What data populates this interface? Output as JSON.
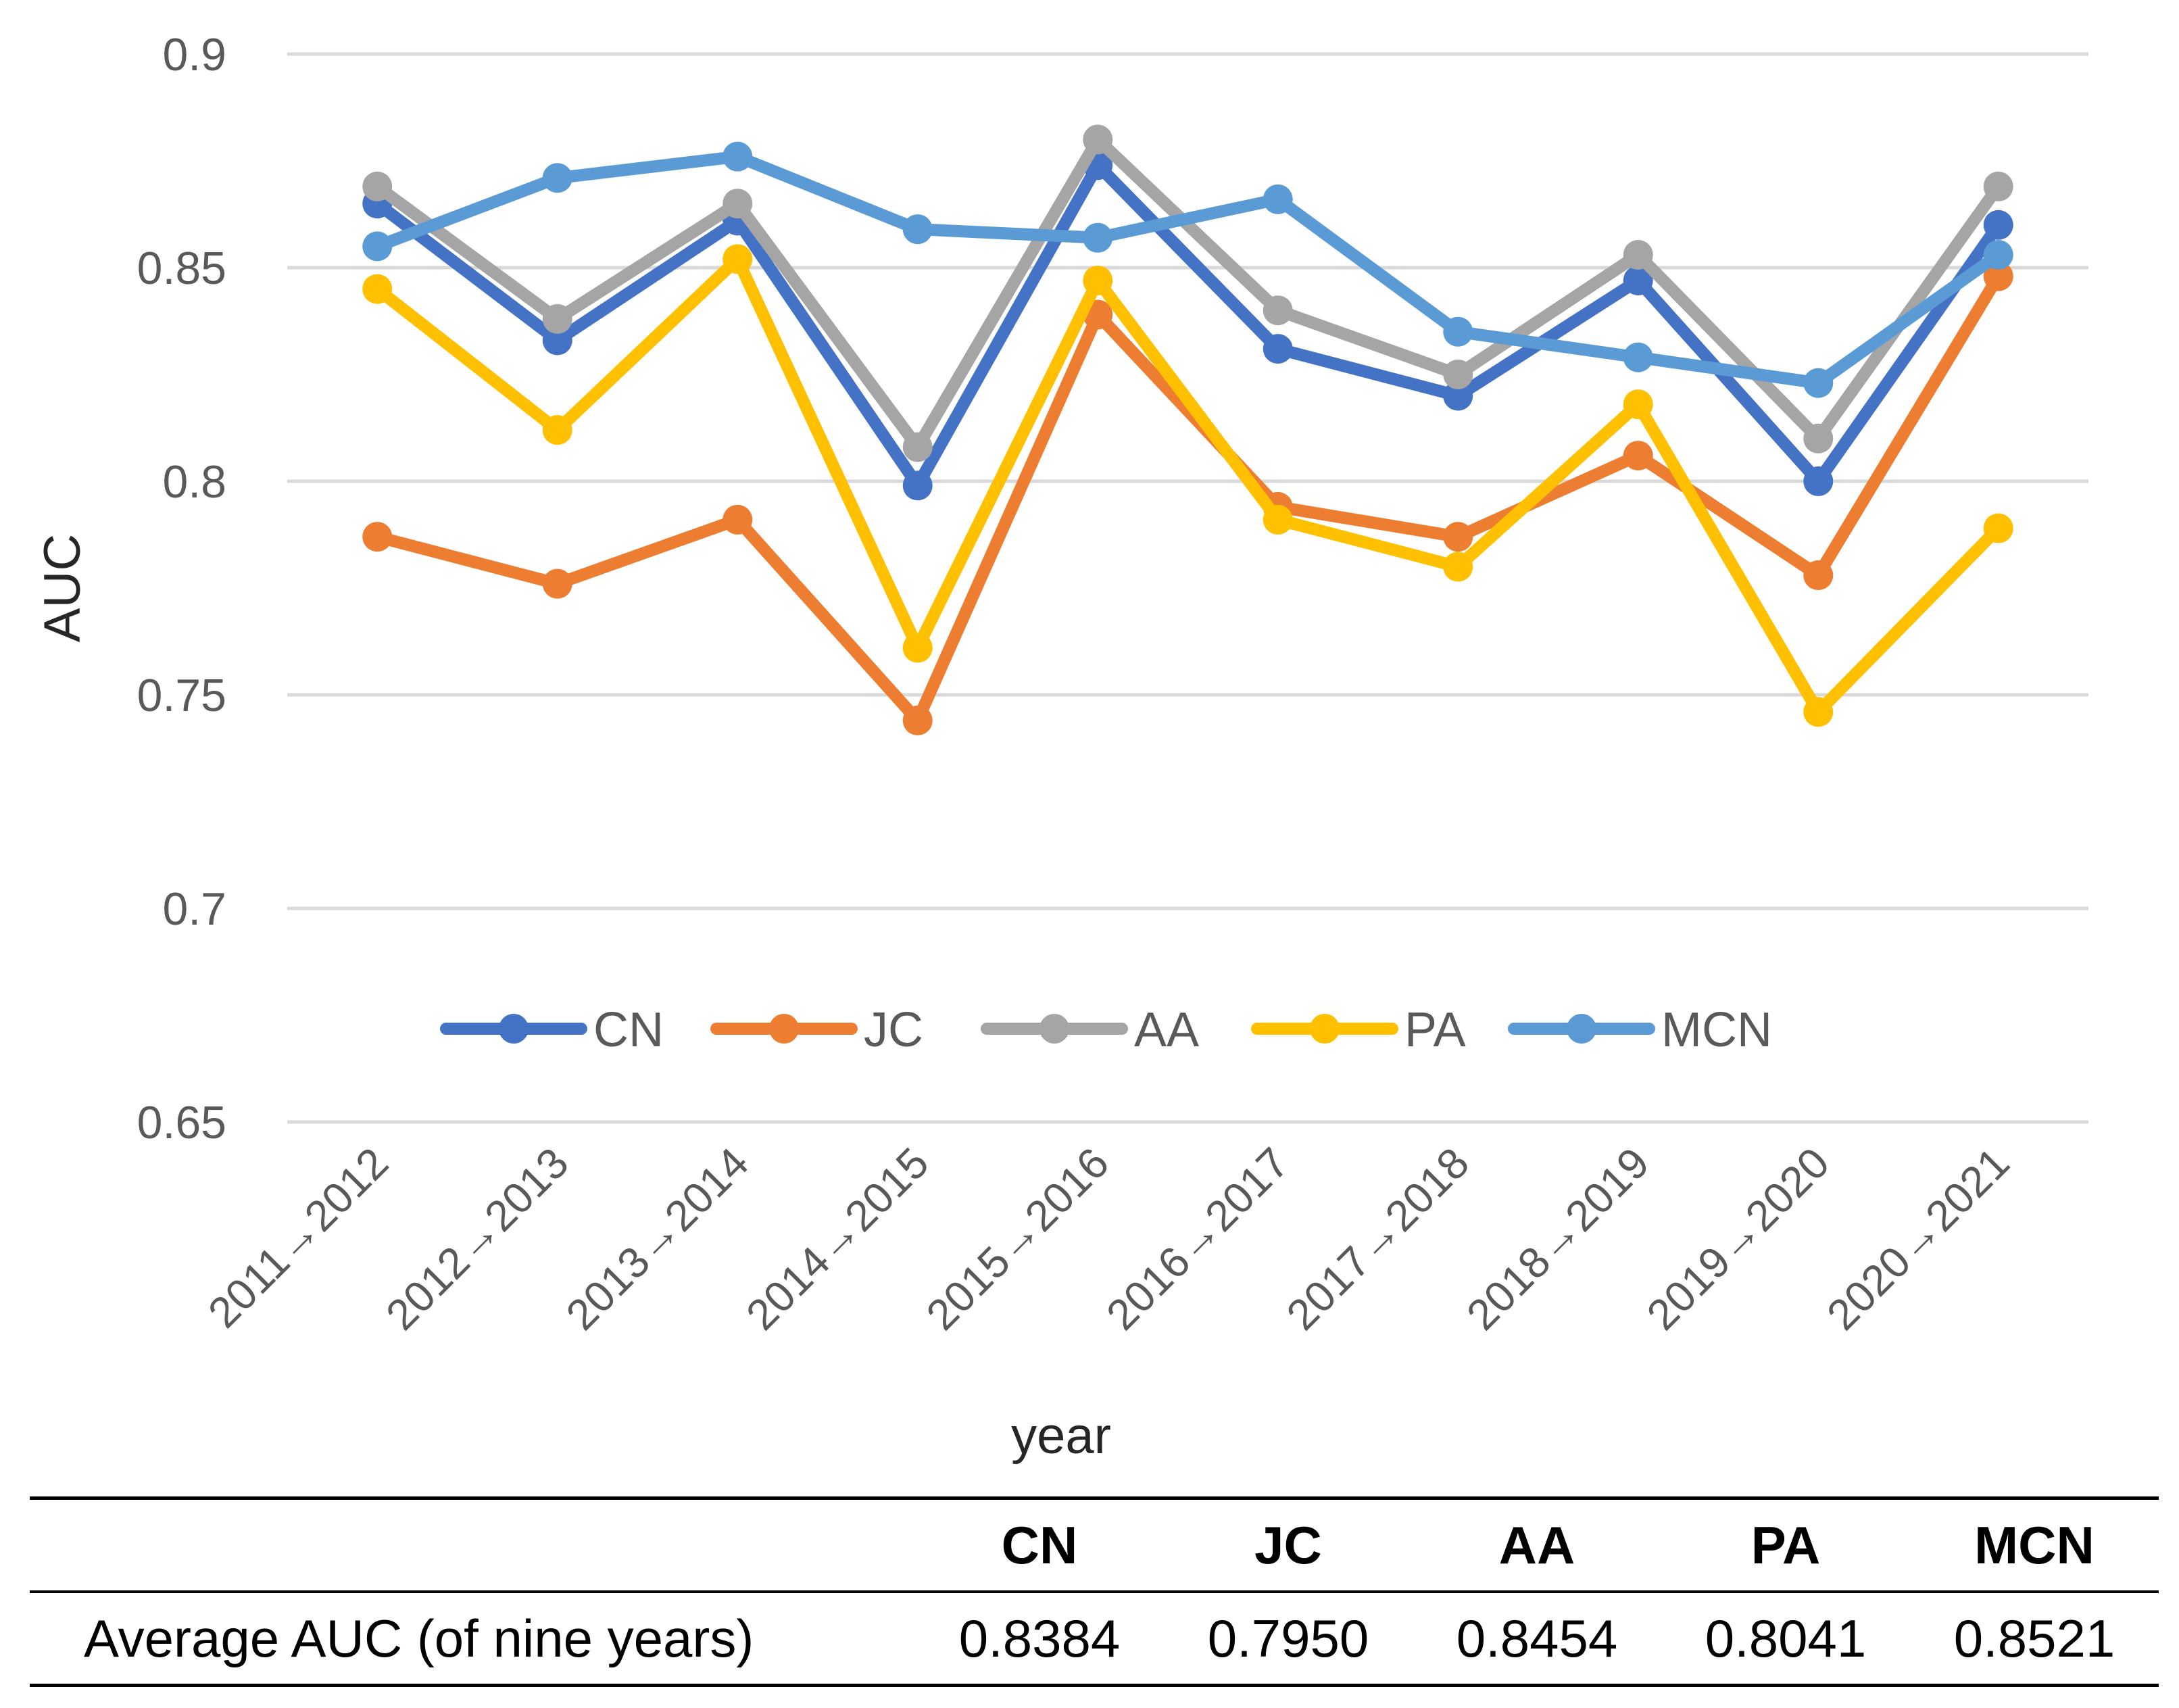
{
  "chart_data": {
    "type": "line",
    "title": "",
    "xlabel": "year",
    "ylabel": "AUC",
    "ylim": [
      0.65,
      0.9
    ],
    "yticks": [
      0.65,
      0.7,
      0.75,
      0.8,
      0.85,
      0.9
    ],
    "ytick_labels": [
      "0.65",
      "0.7",
      "0.75",
      "0.8",
      "0.85",
      "0.9"
    ],
    "grid": true,
    "legend_position": "bottom-inside",
    "categories": [
      "2011→2012",
      "2012→2013",
      "2013→2014",
      "2014→2015",
      "2015→2016",
      "2016→2017",
      "2017→2018",
      "2018→2019",
      "2019→2020",
      "2020→2021"
    ],
    "series": [
      {
        "name": "CN",
        "color": "#4472C4",
        "values": [
          0.865,
          0.833,
          0.861,
          0.799,
          0.874,
          0.831,
          0.82,
          0.847,
          0.8,
          0.86
        ]
      },
      {
        "name": "JC",
        "color": "#ED7D31",
        "values": [
          0.787,
          0.776,
          0.791,
          0.744,
          0.839,
          0.794,
          0.787,
          0.806,
          0.778,
          0.848
        ]
      },
      {
        "name": "AA",
        "color": "#A5A5A5",
        "values": [
          0.869,
          0.838,
          0.865,
          0.808,
          0.88,
          0.84,
          0.825,
          0.853,
          0.81,
          0.869
        ]
      },
      {
        "name": "PA",
        "color": "#FFC000",
        "values": [
          0.845,
          0.812,
          0.852,
          0.761,
          0.847,
          0.791,
          0.78,
          0.818,
          0.746,
          0.789
        ]
      },
      {
        "name": "MCN",
        "color": "#5B9BD5",
        "values": [
          0.855,
          0.871,
          0.876,
          0.859,
          0.857,
          0.866,
          0.835,
          0.829,
          0.823,
          0.853
        ]
      }
    ]
  },
  "table": {
    "headers": [
      "",
      "CN",
      "JC",
      "AA",
      "PA",
      "MCN"
    ],
    "rows": [
      {
        "label": "Average AUC (of nine years)",
        "values": [
          "0.8384",
          "0.7950",
          "0.8454",
          "0.8041",
          "0.8521"
        ]
      }
    ]
  }
}
